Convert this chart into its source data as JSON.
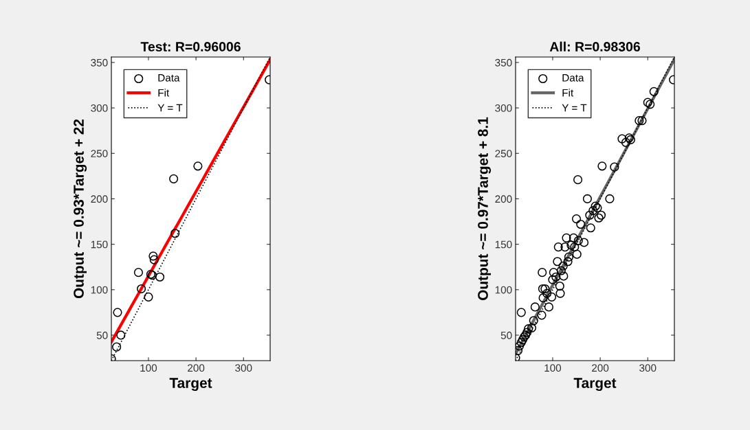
{
  "chart_data": [
    {
      "type": "scatter",
      "title": "Test: R=0.96006",
      "xlabel": "Target",
      "ylabel": "Output ~= 0.93*Target + 22",
      "xlim": [
        22,
        356
      ],
      "ylim": [
        22,
        356
      ],
      "xticks": [
        100,
        200,
        300
      ],
      "yticks": [
        50,
        100,
        150,
        200,
        250,
        300,
        350
      ],
      "grid": false,
      "legend": "top left",
      "series": [
        {
          "name": "Data",
          "marker": "circle",
          "color": "#000000",
          "x": [
            22,
            33,
            42,
            35,
            85,
            79,
            100,
            105,
            108,
            110,
            112,
            124,
            153,
            156,
            204,
            354
          ],
          "values": [
            24,
            37,
            50,
            75,
            101,
            119,
            92,
            117,
            116,
            137,
            133,
            114,
            222,
            162,
            236,
            331
          ]
        },
        {
          "name": "Fit",
          "type": "line",
          "line_style": "solid",
          "color": "#ff0000",
          "x": [
            22,
            356
          ],
          "values": [
            42.5,
            353.1
          ]
        },
        {
          "name": "Y = T",
          "type": "line",
          "line_style": "dotted",
          "color": "#000000",
          "x": [
            22,
            356
          ],
          "values": [
            22,
            356
          ]
        }
      ]
    },
    {
      "type": "scatter",
      "title": "All: R=0.98306",
      "xlabel": "Target",
      "ylabel": "Output ~= 0.97*Target + 8.1",
      "xlim": [
        22,
        356
      ],
      "ylim": [
        22,
        356
      ],
      "xticks": [
        100,
        200,
        300
      ],
      "yticks": [
        50,
        100,
        150,
        200,
        250,
        300,
        350
      ],
      "grid": false,
      "legend": "top left",
      "series": [
        {
          "name": "Data",
          "marker": "circle",
          "color": "#000000",
          "x": [
            22,
            27,
            30,
            34,
            37,
            40,
            43,
            46,
            49,
            34,
            56,
            60,
            63,
            77,
            78,
            79,
            80,
            84,
            88,
            92,
            98,
            100,
            102,
            107,
            110,
            112,
            115,
            116,
            118,
            122,
            123,
            126,
            129,
            132,
            134,
            139,
            144,
            146,
            151,
            154,
            150,
            153,
            159,
            166,
            173,
            178,
            180,
            185,
            190,
            194,
            197,
            202,
            204,
            220,
            230,
            246,
            254,
            261,
            264,
            282,
            288,
            300,
            305,
            313,
            354
          ],
          "values": [
            25,
            33,
            38,
            42,
            45,
            48,
            50,
            53,
            57,
            75,
            58,
            66,
            81,
            72,
            119,
            101,
            91,
            101,
            96,
            81,
            92,
            111,
            119,
            114,
            131,
            147,
            104,
            96,
            121,
            126,
            115,
            147,
            157,
            131,
            136,
            149,
            157,
            147,
            139,
            154,
            178,
            221,
            172,
            152,
            200,
            182,
            168,
            187,
            192,
            190,
            179,
            182,
            236,
            200,
            235,
            266,
            262,
            267,
            265,
            286,
            286,
            306,
            304,
            318,
            331
          ]
        },
        {
          "name": "Fit",
          "type": "line",
          "line_style": "solid",
          "color": "#666666",
          "x": [
            22,
            356
          ],
          "values": [
            29.4,
            353.4
          ]
        },
        {
          "name": "Y = T",
          "type": "line",
          "line_style": "dotted",
          "color": "#000000",
          "x": [
            22,
            356
          ],
          "values": [
            22,
            356
          ]
        }
      ]
    }
  ]
}
